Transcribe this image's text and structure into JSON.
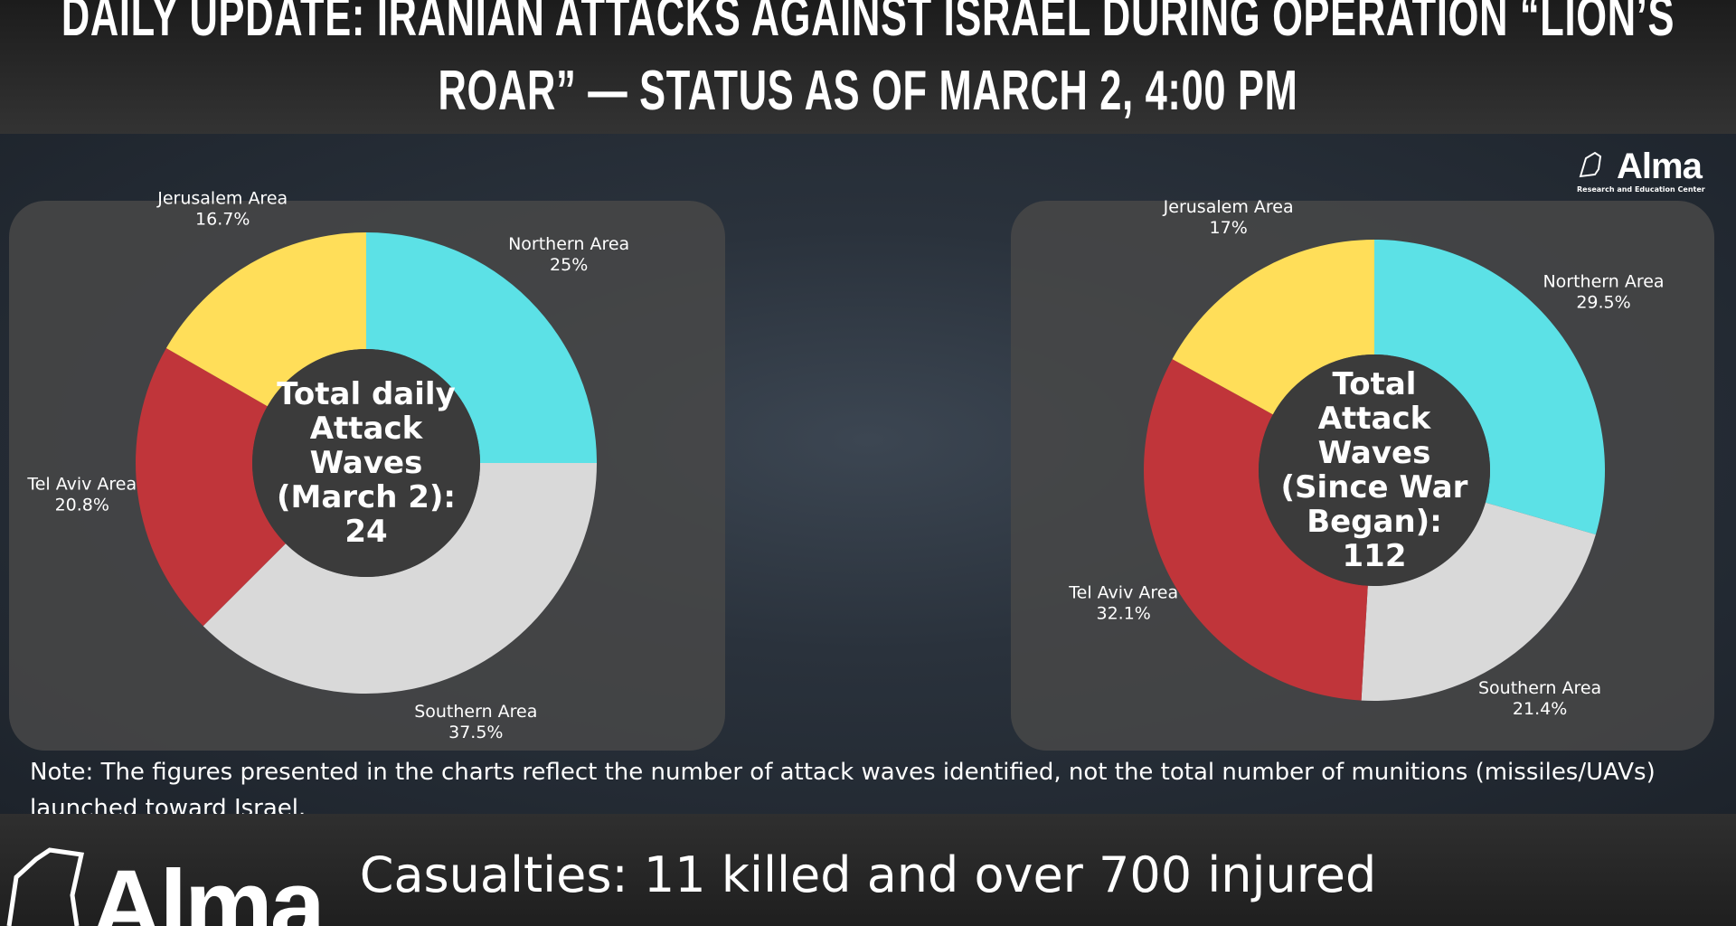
{
  "title": "DAILY UPDATE: IRANIAN ATTACKS AGAINST ISRAEL DURING OPERATION “LION’S ROAR” — STATUS AS OF MARCH 2, 4:00 PM",
  "logo": {
    "name": "Alma",
    "tagline": "Research and Education Center"
  },
  "note": "Note: The figures presented in the charts reflect the number of attack waves identified, not the total number of munitions (missiles/UAVs) launched toward Israel.",
  "casualties": "Casualties: 11 killed and over 700 injured",
  "chart_data": [
    {
      "type": "donut",
      "center_label": "Total daily Attack Waves (March 2):",
      "center_value": 24,
      "categories": [
        "Northern Area",
        "Southern Area",
        "Tel Aviv Area",
        "Jerusalem Area"
      ],
      "values": [
        25,
        37.5,
        20.8,
        16.7
      ],
      "value_labels": [
        "25%",
        "37.5%",
        "20.8%",
        "16.7%"
      ],
      "colors": [
        "#5ce1e6",
        "#d9d9d9",
        "#c0353a",
        "#ffde59"
      ]
    },
    {
      "type": "donut",
      "center_label": "Total Attack Waves (Since War Began):",
      "center_value": 112,
      "categories": [
        "Northern Area",
        "Southern Area",
        "Tel Aviv Area",
        "Jerusalem Area"
      ],
      "values": [
        29.5,
        21.4,
        32.1,
        17
      ],
      "value_labels": [
        "29.5%",
        "21.4%",
        "32.1%",
        "17%"
      ],
      "colors": [
        "#5ce1e6",
        "#d9d9d9",
        "#c0353a",
        "#ffde59"
      ]
    }
  ]
}
